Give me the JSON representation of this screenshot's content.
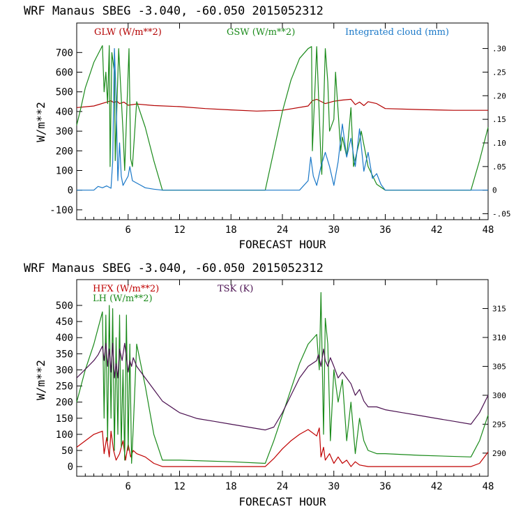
{
  "chart_data": [
    {
      "type": "line",
      "title": "WRF   Manaus SBEG   -3.040, -60.050  2015052312",
      "xlabel": "FORECAST HOUR",
      "ylabel": "W/m**2",
      "xlim": [
        0,
        48
      ],
      "ylim": [
        -150,
        850
      ],
      "y2lim": [
        -0.0625,
        0.354
      ],
      "xticks": [
        "6",
        "12",
        "18",
        "24",
        "30",
        "36",
        "42",
        "48"
      ],
      "yticks": [
        "-100",
        "0",
        "100",
        "200",
        "300",
        "400",
        "500",
        "600",
        "700"
      ],
      "y2ticks": [
        "-.05",
        "0",
        ".05",
        ".10",
        ".15",
        ".20",
        ".25",
        ".30"
      ],
      "series": [
        {
          "name": "GLW (W/m**2)",
          "color": "#b30000",
          "axis": "left",
          "x": [
            0,
            2,
            3.5,
            4,
            4.3,
            4.7,
            5,
            5.5,
            6,
            7,
            9,
            12,
            15,
            18,
            21,
            24,
            27,
            27.5,
            28,
            29,
            30,
            31,
            32,
            32.5,
            33,
            33.5,
            34,
            35,
            36,
            40,
            44,
            48
          ],
          "y": [
            420,
            428,
            448,
            455,
            445,
            452,
            440,
            448,
            432,
            438,
            430,
            425,
            415,
            408,
            402,
            406,
            428,
            455,
            462,
            440,
            452,
            458,
            462,
            435,
            448,
            430,
            450,
            440,
            415,
            410,
            406,
            406
          ]
        },
        {
          "name": "GSW (W/m**2)",
          "color": "#1a8a1a",
          "axis": "left",
          "x": [
            0,
            0.5,
            1,
            2,
            3,
            3.2,
            3.4,
            3.6,
            3.8,
            3.9,
            4.1,
            4.4,
            4.5,
            4.9,
            5.1,
            5.4,
            5.6,
            6,
            6.1,
            6.3,
            6.5,
            7,
            8,
            9,
            10,
            22,
            23,
            24,
            25,
            26,
            27,
            27.4,
            27.5,
            28,
            28.5,
            28.6,
            29,
            29.3,
            29.5,
            30,
            30.2,
            30.8,
            31,
            31.5,
            32,
            32.3,
            33,
            33.2,
            34,
            35,
            36,
            46,
            47,
            48
          ],
          "y": [
            330,
            420,
            520,
            650,
            735,
            500,
            600,
            440,
            735,
            120,
            700,
            600,
            150,
            720,
            550,
            300,
            100,
            600,
            720,
            160,
            120,
            450,
            320,
            150,
            0,
            0,
            200,
            400,
            560,
            670,
            720,
            730,
            200,
            730,
            150,
            80,
            720,
            550,
            300,
            360,
            600,
            200,
            270,
            170,
            420,
            120,
            250,
            300,
            120,
            30,
            0,
            0,
            150,
            320
          ]
        },
        {
          "name": "Integrated cloud (mm)",
          "color": "#1a78c8",
          "axis": "right",
          "x": [
            0,
            2,
            2.5,
            3,
            3.5,
            4,
            4.2,
            4.4,
            4.6,
            4.8,
            5,
            5.2,
            5.4,
            6,
            6.2,
            6.5,
            7,
            7.5,
            8,
            9,
            10,
            22,
            26,
            27,
            27.3,
            27.6,
            28,
            28.5,
            29,
            29.5,
            30,
            30.5,
            31,
            31.5,
            32,
            32.5,
            33,
            33.5,
            34,
            34.5,
            35,
            35.5,
            36,
            40,
            48
          ],
          "y": [
            0,
            0,
            0.008,
            0.005,
            0.009,
            0.004,
            0.06,
            0.3,
            0.2,
            0.02,
            0.1,
            0.03,
            0.01,
            0.03,
            0.05,
            0.02,
            0.015,
            0.01,
            0.005,
            0.002,
            0,
            0,
            0,
            0.02,
            0.07,
            0.03,
            0.01,
            0.05,
            0.08,
            0.05,
            0.01,
            0.06,
            0.14,
            0.07,
            0.11,
            0.05,
            0.13,
            0.04,
            0.08,
            0.025,
            0.035,
            0.012,
            0,
            0,
            0
          ]
        }
      ]
    },
    {
      "type": "line",
      "title": "WRF   Manaus SBEG   -3.040, -60.050  2015052312",
      "xlabel": "FORECAST HOUR",
      "ylabel": "W/m**2",
      "xlim": [
        0,
        48
      ],
      "ylim": [
        -30,
        580
      ],
      "y2lim": [
        286,
        320
      ],
      "xticks": [
        "6",
        "12",
        "18",
        "24",
        "30",
        "36",
        "42",
        "48"
      ],
      "yticks": [
        "0",
        "50",
        "100",
        "150",
        "200",
        "250",
        "300",
        "350",
        "400",
        "450",
        "500"
      ],
      "y2ticks": [
        "290",
        "295",
        "300",
        "305",
        "310",
        "315"
      ],
      "series": [
        {
          "name": "HFX (W/m**2)",
          "color": "#c00000",
          "axis": "left",
          "x": [
            0,
            1,
            2,
            3,
            3.2,
            3.5,
            3.8,
            4,
            4.3,
            4.6,
            5,
            5.4,
            5.7,
            6,
            6.3,
            6.6,
            7,
            8,
            9,
            10,
            12,
            18,
            22,
            23,
            24,
            25,
            26,
            27,
            28,
            28.3,
            28.5,
            28.8,
            29,
            29.5,
            30,
            30.5,
            31,
            31.5,
            32,
            32.5,
            33,
            34,
            36,
            40,
            46,
            47,
            48
          ],
          "y": [
            60,
            80,
            100,
            110,
            40,
            90,
            30,
            110,
            50,
            20,
            40,
            80,
            20,
            70,
            30,
            50,
            40,
            30,
            10,
            0,
            0,
            0,
            0,
            25,
            55,
            80,
            100,
            115,
            95,
            120,
            30,
            60,
            20,
            40,
            10,
            30,
            10,
            20,
            0,
            15,
            5,
            0,
            0,
            0,
            0,
            10,
            45
          ]
        },
        {
          "name": "LH (W/m**2)",
          "color": "#1a8a1a",
          "axis": "left",
          "x": [
            0,
            0.5,
            1,
            2,
            3,
            3.2,
            3.4,
            3.6,
            3.8,
            4,
            4.2,
            4.4,
            4.6,
            4.8,
            5,
            5.2,
            5.4,
            5.6,
            5.8,
            6,
            6.2,
            6.4,
            6.6,
            7,
            8,
            9,
            10,
            12,
            18,
            22,
            23,
            24,
            25,
            26,
            27,
            28,
            28.3,
            28.5,
            28.8,
            29,
            29.3,
            29.6,
            30,
            30.5,
            31,
            31.5,
            32,
            32.5,
            33,
            33.5,
            34,
            35,
            36,
            40,
            46,
            47,
            48
          ],
          "y": [
            200,
            250,
            300,
            380,
            480,
            150,
            470,
            80,
            500,
            150,
            490,
            50,
            400,
            100,
            470,
            60,
            300,
            20,
            470,
            50,
            380,
            10,
            120,
            380,
            250,
            100,
            20,
            20,
            15,
            10,
            80,
            160,
            240,
            320,
            380,
            410,
            300,
            540,
            100,
            460,
            380,
            80,
            300,
            200,
            270,
            80,
            200,
            40,
            150,
            80,
            50,
            40,
            40,
            35,
            30,
            80,
            160
          ]
        },
        {
          "name": "TSK (K)",
          "color": "#4a1050",
          "axis": "right",
          "x": [
            0,
            1,
            2,
            2.5,
            3,
            3.2,
            3.4,
            3.6,
            3.8,
            4,
            4.2,
            4.4,
            4.6,
            4.8,
            5,
            5.3,
            5.6,
            6,
            6.2,
            6.4,
            6.6,
            7,
            8,
            9,
            10,
            12,
            14,
            16,
            18,
            20,
            22,
            23,
            24,
            25,
            26,
            27,
            28,
            28.2,
            28.5,
            28.8,
            29,
            29.3,
            29.6,
            30,
            30.5,
            31,
            31.5,
            32,
            32.5,
            33,
            33.5,
            34,
            35,
            36,
            38,
            40,
            42,
            44,
            46,
            47,
            48
          ],
          "y": [
            303,
            304.5,
            306,
            307,
            308.5,
            306,
            309,
            305,
            308,
            304,
            309,
            303,
            305.5,
            303,
            308,
            306,
            309,
            304,
            306,
            305,
            306.5,
            305,
            303,
            301,
            299,
            297,
            296,
            295.5,
            295,
            294.5,
            294,
            294.5,
            297,
            300,
            303,
            305,
            306,
            307,
            305,
            308,
            306,
            305,
            306.5,
            305,
            303,
            304,
            303,
            302,
            300,
            301,
            299,
            298,
            298,
            297.5,
            297,
            296.5,
            296,
            295.5,
            295,
            297,
            300
          ]
        }
      ]
    }
  ]
}
